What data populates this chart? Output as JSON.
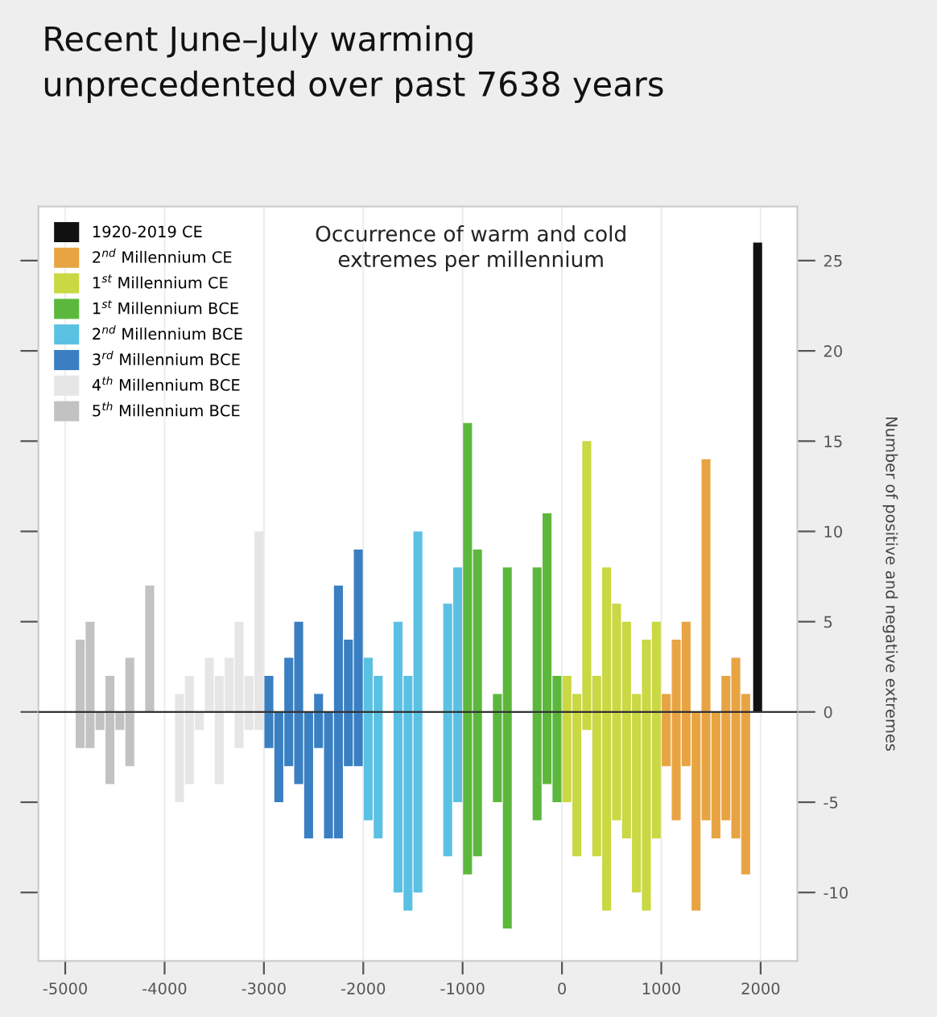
{
  "chart_data": {
    "type": "bar",
    "title": "Recent June–July warming unprecedented over past 7638 years",
    "subtitle": "Occurrence of warm and cold extremes per millennium",
    "ylabel": "Number of positive and negative extremes",
    "series": [
      {
        "name": "1920-2019 CE",
        "color": "#111111",
        "x": [
          1970
        ],
        "base": [
          0
        ],
        "values": [
          26
        ]
      },
      {
        "name": "2$^{nd}$ Millennium CE",
        "color": "#e8a442",
        "x": [
          1050,
          1150,
          1250,
          1350,
          1450,
          1550,
          1650,
          1750,
          1850
        ],
        "base": [
          -3,
          -6,
          -3,
          -11,
          -6,
          -7,
          -6,
          -7,
          -9
        ],
        "values": [
          4,
          10,
          8,
          11,
          20,
          7,
          8,
          10,
          10
        ]
      },
      {
        "name": "1$^{st}$ Millennium CE",
        "color": "#c9d843",
        "x": [
          50,
          150,
          250,
          350,
          450,
          550,
          650,
          750,
          850,
          950
        ],
        "base": [
          -5,
          -8,
          -1,
          -8,
          -11,
          -6,
          -7,
          -10,
          -11,
          -7
        ],
        "values": [
          7,
          9,
          16,
          10,
          19,
          12,
          12,
          11,
          15,
          12
        ]
      },
      {
        "name": "1$^{st}$ Millennium BCE",
        "color": "#5cb83c",
        "x": [
          -950,
          -850,
          -650,
          -550,
          -250,
          -150,
          -50
        ],
        "base": [
          -9,
          -8,
          -5,
          -12,
          -6,
          -4,
          -5
        ],
        "values": [
          25,
          17,
          6,
          20,
          14,
          15,
          7
        ]
      },
      {
        "name": "2$^{nd}$ Millennium BCE",
        "color": "#5ac1e3",
        "x": [
          -1950,
          -1850,
          -1650,
          -1550,
          -1450,
          -1150,
          -1050
        ],
        "base": [
          -6,
          -7,
          -10,
          -11,
          -10,
          -8,
          -5
        ],
        "values": [
          9,
          9,
          15,
          13,
          20,
          14,
          13
        ]
      },
      {
        "name": "3$^{rd}$ Millennium BCE",
        "color": "#3a7fc2",
        "x": [
          -2950,
          -2850,
          -2750,
          -2650,
          -2550,
          -2450,
          -2350,
          -2250,
          -2150,
          -2050
        ],
        "base": [
          -2,
          -5,
          -3,
          -4,
          -7,
          -2,
          -7,
          -7,
          -3,
          -3
        ],
        "values": [
          4,
          5,
          6,
          9,
          7,
          3,
          7,
          14,
          7,
          12
        ]
      },
      {
        "name": "4$^{th}$ Millennium BCE",
        "color": "#e6e6e6",
        "x": [
          -3850,
          -3750,
          -3650,
          -3550,
          -3450,
          -3350,
          -3250,
          -3150,
          -3050
        ],
        "base": [
          -5,
          -4,
          -1,
          0,
          -4,
          0,
          -2,
          -1,
          -1
        ],
        "values": [
          6,
          6,
          1,
          3,
          6,
          3,
          7,
          3,
          11
        ]
      },
      {
        "name": "5$^{th}$ Millennium BCE",
        "color": "#c2c2c2",
        "x": [
          -4850,
          -4750,
          -4650,
          -4550,
          -4450,
          -4350,
          -4150
        ],
        "base": [
          -2,
          -2,
          -1,
          -4,
          -1,
          -3,
          0
        ],
        "values": [
          6,
          7,
          1,
          6,
          1,
          6,
          7
        ]
      }
    ],
    "xlim": [
      -5270,
      2370
    ],
    "ylim": [
      -13.8,
      28
    ],
    "xticks": [
      -5000,
      -4000,
      -3000,
      -2000,
      -1000,
      0,
      1000,
      2000
    ],
    "yticks": [
      -10,
      -5,
      0,
      5,
      10,
      15,
      20,
      25
    ],
    "ref_lines": [
      {
        "axis": "y",
        "value": 0,
        "color": "#333333"
      }
    ],
    "grid": "x",
    "legend": "top left"
  }
}
